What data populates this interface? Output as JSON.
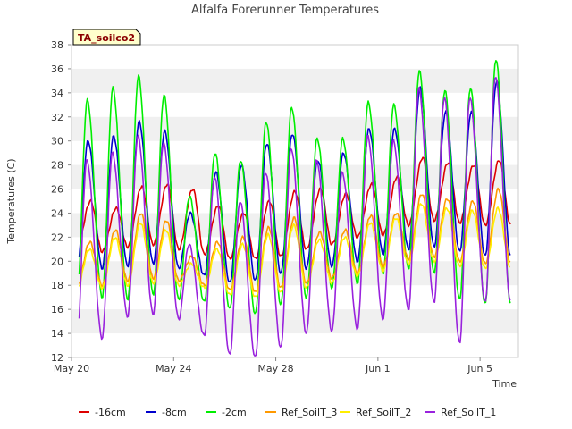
{
  "chart_data": {
    "type": "line",
    "title": "Alfalfa Forerunner Temperatures",
    "badge": "TA_soilco2",
    "xlabel": "Time",
    "ylabel": "Temperatures (C)",
    "ylim": [
      12,
      38
    ],
    "yticks": [
      12,
      14,
      16,
      18,
      20,
      22,
      24,
      26,
      28,
      30,
      32,
      34,
      36,
      38
    ],
    "xlim": [
      0,
      17.5
    ],
    "xtick_positions": [
      0,
      4,
      8,
      12,
      16
    ],
    "xtick_labels": [
      "May 20",
      "May 24",
      "May 28",
      "Jun 1",
      "Jun 5"
    ],
    "grid": "horizontal bands",
    "legend_position": "bottom",
    "day_offsets": [
      0.2,
      1.2,
      2.2,
      3.2,
      4.2,
      5.2,
      6.2,
      7.2,
      8.2,
      9.2,
      10.2,
      11.2,
      12.2,
      13.2,
      14.2,
      15.2,
      16.2
    ],
    "series": [
      {
        "name": "-16cm",
        "color": "#dd0000",
        "x_start": 0.4,
        "x_end": 17.2,
        "peak_phase": 0.55,
        "mins": [
          21.0,
          20.8,
          21.2,
          21.4,
          21.0,
          20.6,
          20.2,
          20.2,
          20.4,
          21.0,
          21.4,
          22.0,
          22.2,
          23.0,
          23.4,
          23.2,
          23.0
        ],
        "maxs": [
          25.0,
          24.4,
          26.2,
          26.4,
          26.0,
          24.6,
          24.0,
          25.0,
          25.8,
          26.0,
          25.6,
          26.4,
          27.0,
          28.6,
          28.2,
          28.0,
          28.4
        ]
      },
      {
        "name": "-8cm",
        "color": "#0000cc",
        "x_start": 0.3,
        "x_end": 17.2,
        "peak_phase": 0.45,
        "mins": [
          19.0,
          19.4,
          19.6,
          19.8,
          19.4,
          18.8,
          18.2,
          18.4,
          19.0,
          19.4,
          19.6,
          20.0,
          20.6,
          21.0,
          21.2,
          20.8,
          20.4
        ],
        "maxs": [
          30.0,
          30.4,
          31.6,
          30.8,
          24.0,
          27.4,
          28.0,
          29.8,
          30.6,
          28.4,
          29.0,
          31.0,
          31.0,
          34.4,
          32.4,
          32.4,
          35.0
        ]
      },
      {
        "name": "-2cm",
        "color": "#00ee00",
        "x_start": 0.3,
        "x_end": 17.2,
        "peak_phase": 0.42,
        "mins": [
          16.6,
          17.0,
          16.8,
          17.2,
          16.8,
          16.6,
          16.0,
          15.6,
          16.4,
          17.0,
          17.8,
          18.2,
          19.0,
          19.4,
          19.0,
          16.8,
          16.4
        ],
        "maxs": [
          33.4,
          34.4,
          35.4,
          33.8,
          25.4,
          29.0,
          28.4,
          31.6,
          32.8,
          30.2,
          30.2,
          33.2,
          33.0,
          35.8,
          34.2,
          34.4,
          36.8
        ]
      },
      {
        "name": "Ref_SoilT_3",
        "color": "#ff9900",
        "x_start": 0.3,
        "x_end": 17.2,
        "peak_phase": 0.52,
        "mins": [
          17.8,
          18.0,
          18.4,
          18.6,
          18.4,
          18.0,
          17.6,
          17.4,
          17.8,
          18.2,
          18.6,
          19.0,
          19.6,
          20.2,
          20.4,
          20.0,
          19.8
        ],
        "maxs": [
          21.6,
          22.6,
          24.0,
          23.4,
          20.4,
          21.6,
          22.0,
          22.8,
          23.6,
          22.4,
          22.6,
          23.8,
          24.0,
          25.6,
          25.2,
          25.0,
          26.0
        ]
      },
      {
        "name": "Ref_SoilT_2",
        "color": "#ffee00",
        "x_start": 0.3,
        "x_end": 17.2,
        "peak_phase": 0.5,
        "mins": [
          17.6,
          17.8,
          18.0,
          18.2,
          18.0,
          17.8,
          17.2,
          17.0,
          17.4,
          17.8,
          18.2,
          18.8,
          19.2,
          19.8,
          20.0,
          19.6,
          19.4
        ],
        "maxs": [
          21.0,
          22.0,
          23.2,
          22.6,
          19.8,
          21.0,
          21.4,
          22.2,
          23.0,
          21.8,
          22.0,
          23.2,
          23.6,
          24.8,
          24.4,
          24.2,
          24.4
        ]
      },
      {
        "name": "Ref_SoilT_1",
        "color": "#9922dd",
        "x_start": 0.3,
        "x_end": 17.2,
        "peak_phase": 0.4,
        "mins": [
          13.0,
          13.6,
          15.4,
          15.6,
          15.2,
          13.8,
          12.2,
          12.0,
          12.8,
          14.0,
          14.2,
          14.4,
          15.2,
          16.0,
          16.6,
          13.2,
          16.6
        ],
        "maxs": [
          28.4,
          29.0,
          30.4,
          29.8,
          21.4,
          27.0,
          25.0,
          27.4,
          29.4,
          28.4,
          27.4,
          30.4,
          30.0,
          34.4,
          33.6,
          33.6,
          35.4
        ]
      }
    ]
  }
}
